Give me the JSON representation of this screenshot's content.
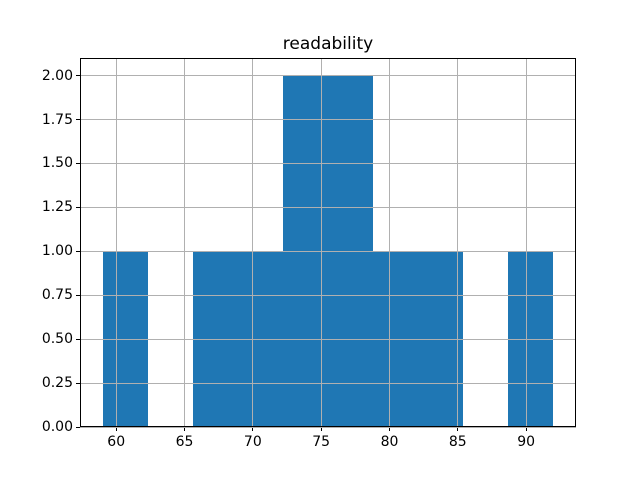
{
  "title": "readability",
  "colors": {
    "bar": "#1f77b4",
    "grid": "#b0b0b0",
    "axis": "#000000",
    "background": "#ffffff",
    "text": "#000000"
  },
  "chart_data": {
    "type": "bar",
    "subtype": "histogram",
    "title": "readability",
    "xlabel": "",
    "ylabel": "",
    "bin_edges": [
      59.0,
      62.3,
      65.6,
      68.9,
      72.2,
      75.5,
      78.8,
      82.1,
      85.4,
      88.7,
      92.0
    ],
    "counts": [
      1,
      0,
      1,
      1,
      2,
      2,
      1,
      1,
      0,
      1
    ],
    "xlim": [
      57.35,
      93.65
    ],
    "ylim": [
      0,
      2.1
    ],
    "x_ticks": [
      60,
      65,
      70,
      75,
      80,
      85,
      90
    ],
    "x_tick_labels": [
      "60",
      "65",
      "70",
      "75",
      "80",
      "85",
      "90"
    ],
    "y_ticks": [
      0.0,
      0.25,
      0.5,
      0.75,
      1.0,
      1.25,
      1.5,
      1.75,
      2.0
    ],
    "y_tick_labels": [
      "0.00",
      "0.25",
      "0.50",
      "0.75",
      "1.00",
      "1.25",
      "1.50",
      "1.75",
      "2.00"
    ],
    "grid": true,
    "grid_above_bars": true,
    "legend": null
  }
}
